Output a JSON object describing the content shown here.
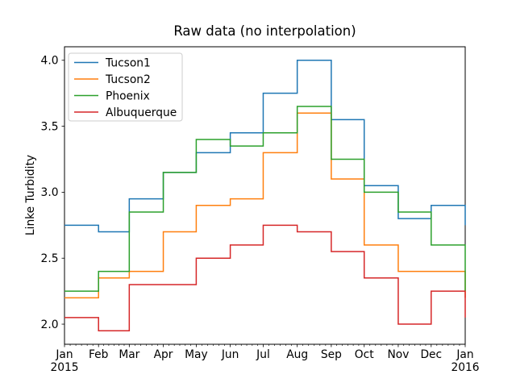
{
  "chart_data": {
    "type": "line",
    "drawstyle": "steps-post",
    "title": "Raw data (no interpolation)",
    "xlabel": "",
    "ylabel": "Linke Turbidity",
    "grid": false,
    "line_width": 1.5,
    "categories": [
      "Jan 2015",
      "Feb 2015",
      "Mar 2015",
      "Apr 2015",
      "May 2015",
      "Jun 2015",
      "Jul 2015",
      "Aug 2015",
      "Sep 2015",
      "Oct 2015",
      "Nov 2015",
      "Dec 2015",
      "Jan 2016"
    ],
    "x_tick_labels": [
      "Jan",
      "Feb",
      "Mar",
      "Apr",
      "May",
      "Jun",
      "Jul",
      "Aug",
      "Sep",
      "Oct",
      "Nov",
      "Dec",
      "Jan"
    ],
    "x_year_labels": {
      "first": "2015",
      "last": "2016"
    },
    "x_month_day_offsets": [
      0,
      31,
      59,
      90,
      120,
      151,
      181,
      212,
      243,
      273,
      304,
      334,
      365
    ],
    "x_minor_ticks_per_month": 6,
    "y_ticks": [
      2.0,
      2.5,
      3.0,
      3.5,
      4.0
    ],
    "y_tick_decimals": 1,
    "ylim": [
      1.8475,
      4.1025
    ],
    "series": [
      {
        "name": "Tucson1",
        "color": "#1f77b4",
        "values": [
          2.75,
          2.7,
          2.95,
          3.15,
          3.3,
          3.45,
          3.75,
          4.0,
          3.55,
          3.05,
          2.8,
          2.9,
          2.75
        ]
      },
      {
        "name": "Tucson2",
        "color": "#ff7f0e",
        "values": [
          2.2,
          2.35,
          2.4,
          2.7,
          2.9,
          2.95,
          3.3,
          3.6,
          3.1,
          2.6,
          2.4,
          2.4,
          2.2
        ]
      },
      {
        "name": "Phoenix",
        "color": "#2ca02c",
        "values": [
          2.25,
          2.4,
          2.85,
          3.15,
          3.4,
          3.35,
          3.45,
          3.65,
          3.25,
          3.0,
          2.85,
          2.6,
          2.25
        ]
      },
      {
        "name": "Albuquerque",
        "color": "#d62728",
        "values": [
          2.05,
          1.95,
          2.3,
          2.3,
          2.5,
          2.6,
          2.75,
          2.7,
          2.55,
          2.35,
          2.0,
          2.25,
          2.05
        ]
      }
    ],
    "legend": {
      "position": "upper left",
      "entries": [
        "Tucson1",
        "Tucson2",
        "Phoenix",
        "Albuquerque"
      ]
    },
    "colors": {
      "axes": "#000000",
      "figure_background": "#ffffff",
      "legend_border": "#cccccc",
      "legend_background": "#ffffff"
    }
  }
}
